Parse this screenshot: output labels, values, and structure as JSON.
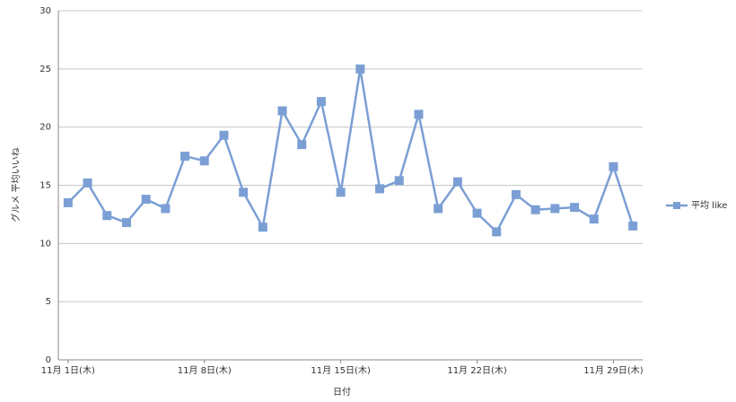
{
  "chart_data": {
    "type": "line",
    "y_label": "グルメ 平均いいね",
    "x_label": "日付",
    "categories": [
      "11月 1日(木)",
      null,
      null,
      null,
      null,
      null,
      null,
      "11月 8日(木)",
      null,
      null,
      null,
      null,
      null,
      null,
      "11月 15日(木)",
      null,
      null,
      null,
      null,
      null,
      null,
      "11月 22日(木)",
      null,
      null,
      null,
      null,
      null,
      null,
      "11月 29日(木)",
      null
    ],
    "series": [
      {
        "name": "平均 like",
        "color": "#7b9fd4",
        "values": [
          13.5,
          15.2,
          12.4,
          11.8,
          13.8,
          13.0,
          17.5,
          17.1,
          19.3,
          14.4,
          11.4,
          21.4,
          18.5,
          22.2,
          14.4,
          25.0,
          14.7,
          15.4,
          21.1,
          13.0,
          15.3,
          12.6,
          11.0,
          14.2,
          12.9,
          13.0,
          13.1,
          12.1,
          16.6,
          11.5
        ]
      }
    ],
    "ylim": [
      0,
      30
    ],
    "yticks": [
      0,
      5,
      10,
      15,
      20,
      25,
      30
    ],
    "grid": true,
    "legend": "right"
  }
}
